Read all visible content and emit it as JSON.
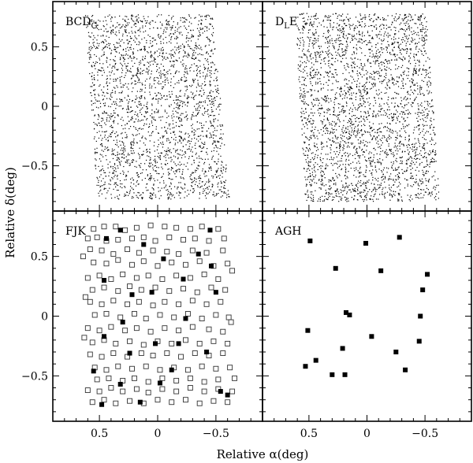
{
  "chart_data": {
    "type": "scatter",
    "xlabel": "Relative α(deg)",
    "ylabel": "Relative δ(deg)",
    "xlim": [
      0.9,
      -0.9
    ],
    "ylim": [
      -0.88,
      0.88
    ],
    "x_ticks": [
      0.5,
      0,
      -0.5
    ],
    "x_tick_labels": [
      "0.5",
      "0",
      "−0.5"
    ],
    "y_ticks": [
      0.5,
      0,
      -0.5
    ],
    "y_tick_labels": [
      "0.5",
      "0",
      "−0.5"
    ],
    "grid": false,
    "panels": [
      {
        "id": "bcd",
        "label_main": "BCD",
        "label_sub": "G",
        "marker": "dot",
        "footprint": {
          "polygon": [
            [
              0.62,
              0.77
            ],
            [
              -0.47,
              0.77
            ],
            [
              -0.62,
              -0.78
            ],
            [
              0.52,
              -0.78
            ]
          ],
          "n_points": 2600,
          "description": "dense uniform sky field"
        }
      },
      {
        "id": "dle",
        "label_main": "D",
        "label_sub": "L",
        "label_tail": "E",
        "marker": "dot",
        "footprint": {
          "polygon": [
            [
              0.62,
              0.78
            ],
            [
              -0.51,
              0.78
            ],
            [
              -0.63,
              -0.8
            ],
            [
              0.53,
              -0.8
            ]
          ],
          "n_points": 3000,
          "description": "dense uniform sky field"
        }
      },
      {
        "id": "fjk",
        "label_main": "FJK",
        "series": [
          {
            "marker": "open-square",
            "points": [
              [
                0.55,
                0.73
              ],
              [
                0.46,
                0.75
              ],
              [
                0.36,
                0.75
              ],
              [
                0.28,
                0.72
              ],
              [
                0.18,
                0.74
              ],
              [
                0.06,
                0.76
              ],
              [
                -0.06,
                0.75
              ],
              [
                -0.16,
                0.74
              ],
              [
                -0.28,
                0.73
              ],
              [
                -0.38,
                0.75
              ],
              [
                -0.52,
                0.73
              ],
              [
                0.6,
                0.65
              ],
              [
                0.52,
                0.66
              ],
              [
                0.44,
                0.63
              ],
              [
                0.34,
                0.64
              ],
              [
                0.22,
                0.65
              ],
              [
                0.12,
                0.66
              ],
              [
                0.02,
                0.63
              ],
              [
                -0.1,
                0.66
              ],
              [
                -0.22,
                0.64
              ],
              [
                -0.32,
                0.65
              ],
              [
                -0.44,
                0.63
              ],
              [
                -0.57,
                0.65
              ],
              [
                0.58,
                0.56
              ],
              [
                0.48,
                0.55
              ],
              [
                0.38,
                0.52
              ],
              [
                0.26,
                0.56
              ],
              [
                0.16,
                0.53
              ],
              [
                0.04,
                0.55
              ],
              [
                -0.08,
                0.54
              ],
              [
                -0.18,
                0.52
              ],
              [
                -0.3,
                0.55
              ],
              [
                -0.42,
                0.53
              ],
              [
                -0.56,
                0.55
              ],
              [
                0.55,
                0.45
              ],
              [
                0.44,
                0.44
              ],
              [
                0.34,
                0.47
              ],
              [
                0.22,
                0.43
              ],
              [
                0.12,
                0.46
              ],
              [
                0.0,
                0.42
              ],
              [
                -0.12,
                0.45
              ],
              [
                -0.24,
                0.43
              ],
              [
                -0.36,
                0.46
              ],
              [
                -0.48,
                0.42
              ],
              [
                -0.6,
                0.44
              ],
              [
                0.6,
                0.32
              ],
              [
                0.5,
                0.34
              ],
              [
                0.4,
                0.31
              ],
              [
                0.3,
                0.35
              ],
              [
                0.18,
                0.32
              ],
              [
                0.08,
                0.34
              ],
              [
                -0.04,
                0.31
              ],
              [
                -0.16,
                0.34
              ],
              [
                -0.28,
                0.32
              ],
              [
                -0.4,
                0.35
              ],
              [
                -0.52,
                0.31
              ],
              [
                0.56,
                0.22
              ],
              [
                0.46,
                0.24
              ],
              [
                0.34,
                0.21
              ],
              [
                0.24,
                0.25
              ],
              [
                0.14,
                0.22
              ],
              [
                0.02,
                0.24
              ],
              [
                -0.1,
                0.21
              ],
              [
                -0.22,
                0.23
              ],
              [
                -0.34,
                0.2
              ],
              [
                -0.46,
                0.24
              ],
              [
                -0.58,
                0.22
              ],
              [
                0.58,
                0.12
              ],
              [
                0.48,
                0.1
              ],
              [
                0.38,
                0.13
              ],
              [
                0.26,
                0.1
              ],
              [
                0.16,
                0.12
              ],
              [
                0.04,
                0.09
              ],
              [
                -0.06,
                0.12
              ],
              [
                -0.18,
                0.1
              ],
              [
                -0.3,
                0.13
              ],
              [
                -0.42,
                0.1
              ],
              [
                -0.54,
                0.12
              ],
              [
                0.54,
                0.01
              ],
              [
                0.44,
                0.02
              ],
              [
                0.32,
                -0.01
              ],
              [
                0.2,
                0.02
              ],
              [
                0.1,
                -0.02
              ],
              [
                -0.02,
                0.01
              ],
              [
                -0.14,
                -0.01
              ],
              [
                -0.26,
                0.02
              ],
              [
                -0.38,
                -0.02
              ],
              [
                -0.5,
                0.01
              ],
              [
                -0.61,
                -0.01
              ],
              [
                0.6,
                -0.1
              ],
              [
                0.5,
                -0.12
              ],
              [
                0.4,
                -0.09
              ],
              [
                0.28,
                -0.12
              ],
              [
                0.18,
                -0.1
              ],
              [
                0.06,
                -0.13
              ],
              [
                -0.06,
                -0.1
              ],
              [
                -0.18,
                -0.12
              ],
              [
                -0.3,
                -0.09
              ],
              [
                -0.44,
                -0.11
              ],
              [
                -0.56,
                -0.13
              ],
              [
                0.56,
                -0.22
              ],
              [
                0.46,
                -0.2
              ],
              [
                0.36,
                -0.23
              ],
              [
                0.24,
                -0.21
              ],
              [
                0.12,
                -0.24
              ],
              [
                0.0,
                -0.21
              ],
              [
                -0.12,
                -0.23
              ],
              [
                -0.24,
                -0.2
              ],
              [
                -0.36,
                -0.23
              ],
              [
                -0.48,
                -0.21
              ],
              [
                -0.6,
                -0.23
              ],
              [
                0.58,
                -0.32
              ],
              [
                0.48,
                -0.34
              ],
              [
                0.38,
                -0.31
              ],
              [
                0.26,
                -0.34
              ],
              [
                0.14,
                -0.31
              ],
              [
                0.04,
                -0.33
              ],
              [
                -0.08,
                -0.31
              ],
              [
                -0.2,
                -0.34
              ],
              [
                -0.32,
                -0.31
              ],
              [
                -0.44,
                -0.33
              ],
              [
                -0.56,
                -0.31
              ],
              [
                0.54,
                -0.43
              ],
              [
                0.44,
                -0.45
              ],
              [
                0.34,
                -0.42
              ],
              [
                0.22,
                -0.44
              ],
              [
                0.1,
                -0.42
              ],
              [
                -0.02,
                -0.45
              ],
              [
                -0.14,
                -0.43
              ],
              [
                -0.26,
                -0.45
              ],
              [
                -0.38,
                -0.42
              ],
              [
                -0.5,
                -0.44
              ],
              [
                -0.62,
                -0.43
              ],
              [
                0.6,
                -0.62
              ],
              [
                0.5,
                -0.63
              ],
              [
                0.4,
                -0.6
              ],
              [
                0.3,
                -0.63
              ],
              [
                0.18,
                -0.61
              ],
              [
                0.08,
                -0.64
              ],
              [
                -0.04,
                -0.61
              ],
              [
                -0.16,
                -0.63
              ],
              [
                -0.28,
                -0.6
              ],
              [
                -0.4,
                -0.63
              ],
              [
                -0.52,
                -0.61
              ],
              [
                -0.64,
                -0.63
              ],
              [
                0.56,
                -0.72
              ],
              [
                0.46,
                -0.7
              ],
              [
                0.36,
                -0.73
              ],
              [
                0.24,
                -0.71
              ],
              [
                0.12,
                -0.73
              ],
              [
                0.0,
                -0.7
              ],
              [
                -0.12,
                -0.72
              ],
              [
                -0.24,
                -0.7
              ],
              [
                -0.36,
                -0.73
              ],
              [
                -0.48,
                -0.71
              ],
              [
                -0.6,
                -0.72
              ],
              [
                0.52,
                -0.53
              ],
              [
                0.42,
                -0.52
              ],
              [
                0.3,
                -0.54
              ],
              [
                0.2,
                -0.52
              ],
              [
                0.08,
                -0.55
              ],
              [
                -0.04,
                -0.52
              ],
              [
                -0.16,
                -0.54
              ],
              [
                -0.28,
                -0.52
              ],
              [
                -0.4,
                -0.55
              ],
              [
                -0.52,
                -0.53
              ],
              [
                0.64,
                0.5
              ],
              [
                0.62,
                0.16
              ],
              [
                0.63,
                -0.18
              ],
              [
                -0.64,
                0.38
              ],
              [
                -0.63,
                -0.05
              ],
              [
                -0.66,
                -0.52
              ]
            ]
          },
          {
            "marker": "filled-square",
            "points": [
              [
                0.32,
                0.72
              ],
              [
                0.12,
                0.6
              ],
              [
                -0.05,
                0.48
              ],
              [
                -0.46,
                0.42
              ],
              [
                0.46,
                0.3
              ],
              [
                -0.22,
                0.31
              ],
              [
                0.22,
                0.18
              ],
              [
                -0.5,
                0.2
              ],
              [
                0.3,
                -0.05
              ],
              [
                -0.24,
                -0.02
              ],
              [
                0.46,
                -0.17
              ],
              [
                0.02,
                -0.23
              ],
              [
                -0.18,
                -0.23
              ],
              [
                0.24,
                -0.31
              ],
              [
                -0.42,
                -0.3
              ],
              [
                0.55,
                -0.46
              ],
              [
                -0.12,
                -0.45
              ],
              [
                0.32,
                -0.57
              ],
              [
                -0.02,
                -0.56
              ],
              [
                -0.54,
                -0.63
              ],
              [
                0.48,
                -0.74
              ],
              [
                0.15,
                -0.72
              ],
              [
                -0.6,
                -0.66
              ],
              [
                -0.45,
                0.72
              ],
              [
                0.44,
                0.65
              ],
              [
                -0.35,
                0.52
              ],
              [
                0.05,
                0.2
              ]
            ]
          }
        ]
      },
      {
        "id": "agh",
        "label_main": "AGH",
        "series": [
          {
            "marker": "filled-square",
            "points": [
              [
                0.49,
                0.63
              ],
              [
                0.27,
                0.4
              ],
              [
                0.01,
                0.61
              ],
              [
                -0.12,
                0.38
              ],
              [
                -0.28,
                0.66
              ],
              [
                -0.52,
                0.35
              ],
              [
                -0.48,
                0.22
              ],
              [
                -0.46,
                0.0
              ],
              [
                0.18,
                0.03
              ],
              [
                0.15,
                0.01
              ],
              [
                -0.45,
                -0.21
              ],
              [
                0.51,
                -0.12
              ],
              [
                0.21,
                -0.27
              ],
              [
                -0.04,
                -0.17
              ],
              [
                -0.25,
                -0.3
              ],
              [
                0.44,
                -0.37
              ],
              [
                0.3,
                -0.49
              ],
              [
                0.53,
                -0.42
              ],
              [
                0.19,
                -0.49
              ],
              [
                -0.33,
                -0.45
              ]
            ]
          }
        ]
      }
    ]
  }
}
